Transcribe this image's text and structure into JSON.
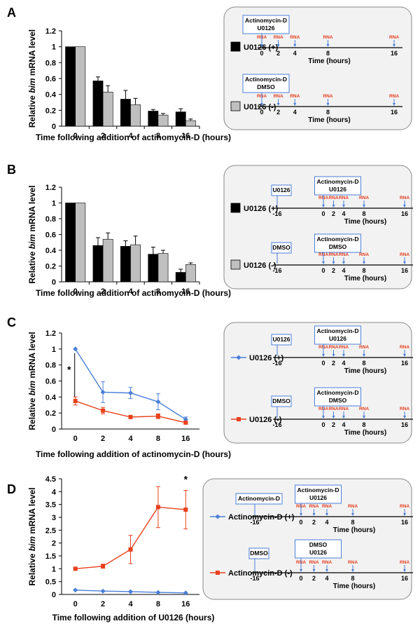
{
  "panels": [
    {
      "letter": "A",
      "chart_data": {
        "type": "bar",
        "categories": [
          "0",
          "2",
          "4",
          "8",
          "16"
        ],
        "ylabel_pre": "Relative ",
        "ylabel_it": "bim",
        "ylabel_post": " mRNA level",
        "xlabel": "Time following addition of actinomycin-D (hours)",
        "ylim": [
          0,
          1.2
        ],
        "yticks": [
          "0",
          "0.2",
          "0.4",
          "0.6",
          "0.8",
          "1",
          "1.2"
        ],
        "series": [
          {
            "name": "U0126 (+)",
            "color": "#000000",
            "values": [
              1,
              0.57,
              0.34,
              0.19,
              0.18
            ],
            "err": [
              0,
              0.05,
              0.11,
              0.02,
              0.04
            ]
          },
          {
            "name": "U0126 (-)",
            "color": "#bfbfbf",
            "values": [
              1,
              0.43,
              0.27,
              0.14,
              0.07
            ],
            "err": [
              0,
              0.08,
              0.08,
              0.02,
              0.02
            ]
          }
        ]
      },
      "legend": [
        "U0126 (+)",
        "U0126 (-)"
      ],
      "schemes": [
        {
          "boxes": [
            {
              "lines": [
                "Actinomycin-D",
                "U0126"
              ]
            }
          ],
          "rna": "RNA",
          "ticks": [
            "0",
            "2",
            "4",
            "8",
            "16"
          ],
          "time": "Time (hours)"
        },
        {
          "boxes": [
            {
              "lines": [
                "Actinomycin-D",
                "DMSO"
              ]
            }
          ],
          "rna": "RNA",
          "ticks": [
            "0",
            "2",
            "4",
            "8",
            "16"
          ],
          "time": "Time (hours)"
        }
      ]
    },
    {
      "letter": "B",
      "chart_data": {
        "type": "bar",
        "categories": [
          "0",
          "2",
          "4",
          "8",
          "16"
        ],
        "ylabel_pre": "Relative ",
        "ylabel_it": "bim",
        "ylabel_post": " mRNA level",
        "xlabel": "Time following addition of actinomycin-D (hours)",
        "ylim": [
          0,
          1.2
        ],
        "yticks": [
          "0",
          "0.2",
          "0.4",
          "0.6",
          "0.8",
          "1",
          "1.2"
        ],
        "series": [
          {
            "name": "U0126 (+)",
            "color": "#000000",
            "values": [
              1,
              0.46,
              0.45,
              0.35,
              0.12
            ],
            "err": [
              0,
              0.1,
              0.07,
              0.09,
              0.04
            ]
          },
          {
            "name": "U0126 (-)",
            "color": "#bfbfbf",
            "values": [
              1,
              0.54,
              0.47,
              0.36,
              0.22
            ],
            "err": [
              0,
              0.08,
              0.11,
              0.04,
              0.02
            ]
          }
        ]
      },
      "legend": [
        "U0126 (+)",
        "U0126 (-)"
      ],
      "schemes": [
        {
          "boxes": [
            {
              "lines": [
                "U0126"
              ]
            },
            {
              "lines": [
                "Actinomycin-D",
                "U0126"
              ]
            }
          ],
          "rna": "RNA",
          "ticks": [
            "-16",
            "0",
            "2",
            "4",
            "8",
            "16"
          ],
          "time": "Time (hours)"
        },
        {
          "boxes": [
            {
              "lines": [
                "DMSO"
              ]
            },
            {
              "lines": [
                "Actinomycin-D",
                "DMSO"
              ]
            }
          ],
          "rna": "RNA",
          "ticks": [
            "-16",
            "0",
            "2",
            "4",
            "8",
            "16"
          ],
          "time": "Time (hours)"
        }
      ]
    },
    {
      "letter": "C",
      "chart_data": {
        "type": "line",
        "categories": [
          "0",
          "2",
          "4",
          "8",
          "16"
        ],
        "ylabel_pre": "Relative ",
        "ylabel_it": "bim",
        "ylabel_post": " mRNA level",
        "xlabel": "Time following addition of actinomycin-D (hours)",
        "ylim": [
          0,
          1.2
        ],
        "yticks": [
          "0",
          "0.2",
          "0.4",
          "0.6",
          "0.8",
          "1",
          "1.2"
        ],
        "annotation": "*",
        "series": [
          {
            "name": "U0126 (+)",
            "color": "#4a7fd8",
            "marker": "diamond",
            "values": [
              1,
              0.46,
              0.45,
              0.34,
              0.12
            ],
            "err": [
              0,
              0.13,
              0.07,
              0.1,
              0.03
            ]
          },
          {
            "name": "U0126 (-)",
            "color": "#e8401c",
            "marker": "square",
            "values": [
              0.35,
              0.23,
              0.15,
              0.16,
              0.08
            ],
            "err": [
              0.05,
              0.04,
              0.01,
              0.03,
              0.01
            ]
          }
        ]
      },
      "legend": [
        "U0126 (+)",
        "U0126 (-)"
      ],
      "schemes": [
        {
          "boxes": [
            {
              "lines": [
                "U0126"
              ]
            },
            {
              "lines": [
                "Actinomycin-D",
                "U0126"
              ]
            }
          ],
          "rna": "RNA",
          "ticks": [
            "-16",
            "0",
            "2",
            "4",
            "8",
            "16"
          ],
          "time": "Time (hours)"
        },
        {
          "boxes": [
            {
              "lines": [
                "DMSO"
              ]
            },
            {
              "lines": [
                "Actinomycin-D",
                "DMSO"
              ]
            }
          ],
          "rna": "RNA",
          "ticks": [
            "-16",
            "0",
            "2",
            "4",
            "8",
            "16"
          ],
          "time": "Time (hours)"
        }
      ]
    },
    {
      "letter": "D",
      "chart_data": {
        "type": "line",
        "categories": [
          "0",
          "2",
          "4",
          "8",
          "16"
        ],
        "ylabel_pre": "Relative ",
        "ylabel_it": "bim",
        "ylabel_post": " mRNA level",
        "xlabel": "Time following addition of U0126 (hours)",
        "ylim": [
          0,
          4.5
        ],
        "yticks": [
          "0",
          "0.5",
          "1",
          "1.5",
          "2",
          "2.5",
          "3",
          "3.5",
          "4",
          "4.5"
        ],
        "annotation": "*",
        "series": [
          {
            "name": "Actinomycin-D (+)",
            "color": "#4a7fd8",
            "marker": "diamond",
            "values": [
              0.17,
              0.13,
              0.11,
              0.08,
              0.06
            ],
            "err": [
              0.01,
              0.01,
              0.01,
              0.01,
              0.01
            ]
          },
          {
            "name": "Actinomycin-D (-)",
            "color": "#e8401c",
            "marker": "square",
            "values": [
              1,
              1.1,
              1.75,
              3.4,
              3.3
            ],
            "err": [
              0.03,
              0.08,
              0.55,
              0.8,
              0.75
            ]
          }
        ]
      },
      "legend": [
        "Actinomycin-D (+)",
        "Actinomycin-D (-)"
      ],
      "schemes": [
        {
          "boxes": [
            {
              "lines": [
                "Actinomycin-D"
              ]
            },
            {
              "lines": [
                "Actinomycin-D",
                "U0126"
              ]
            }
          ],
          "rna": "RNA",
          "ticks": [
            "-16",
            "0",
            "2",
            "4",
            "8",
            "16"
          ],
          "time": "Time (hours)"
        },
        {
          "boxes": [
            {
              "lines": [
                "DMSO"
              ]
            },
            {
              "lines": [
                "DMSO",
                "U0126"
              ]
            }
          ],
          "rna": "RNA",
          "ticks": [
            "-16",
            "0",
            "2",
            "4",
            "8",
            "16"
          ],
          "time": "Time (hours)"
        }
      ]
    }
  ]
}
